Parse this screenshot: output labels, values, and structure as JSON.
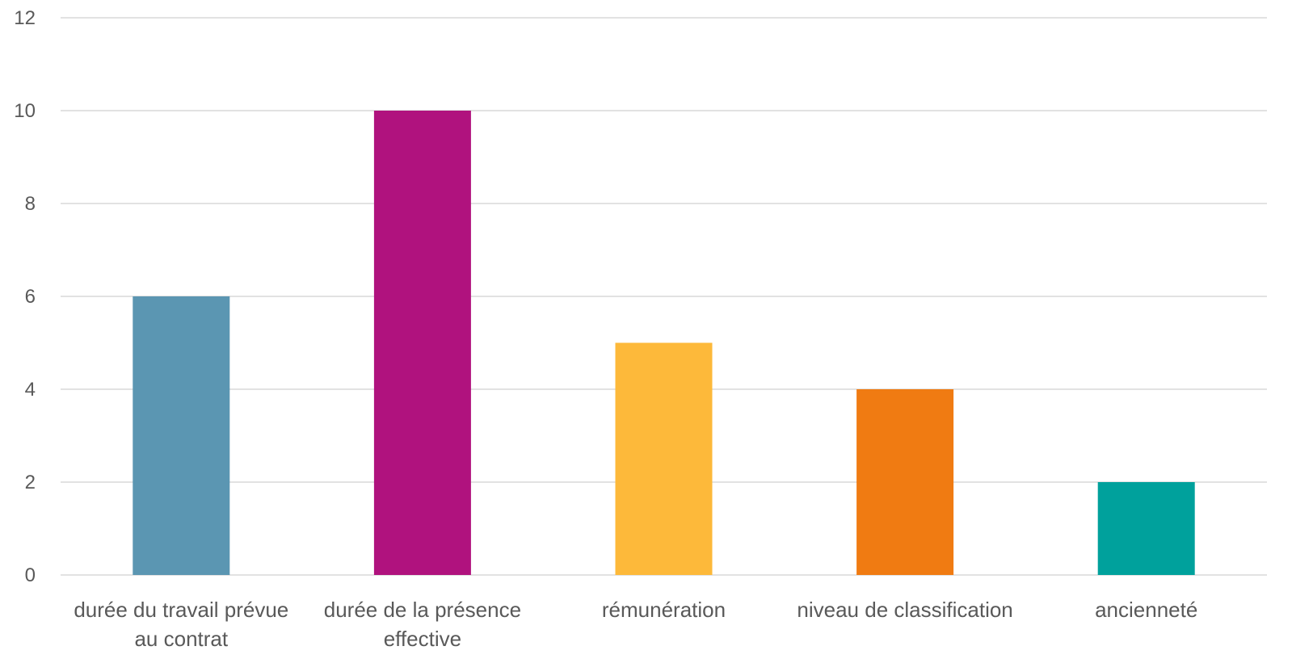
{
  "chart_data": {
    "type": "bar",
    "title": "",
    "xlabel": "",
    "ylabel": "",
    "ylim": [
      0,
      12
    ],
    "yticks": [
      "0",
      "2",
      "4",
      "6",
      "8",
      "10",
      "12"
    ],
    "grid": true,
    "legend": "none",
    "categories": [
      [
        "durée du travail prévue",
        "au contrat"
      ],
      [
        "durée de la présence",
        "effective"
      ],
      [
        "rémunération"
      ],
      [
        "niveau de classification"
      ],
      [
        "ancienneté"
      ]
    ],
    "values": [
      6,
      10,
      5,
      4,
      2
    ],
    "colors": [
      "#5b96b2",
      "#b0127e",
      "#fdb93a",
      "#f07b12",
      "#00a19c"
    ]
  }
}
